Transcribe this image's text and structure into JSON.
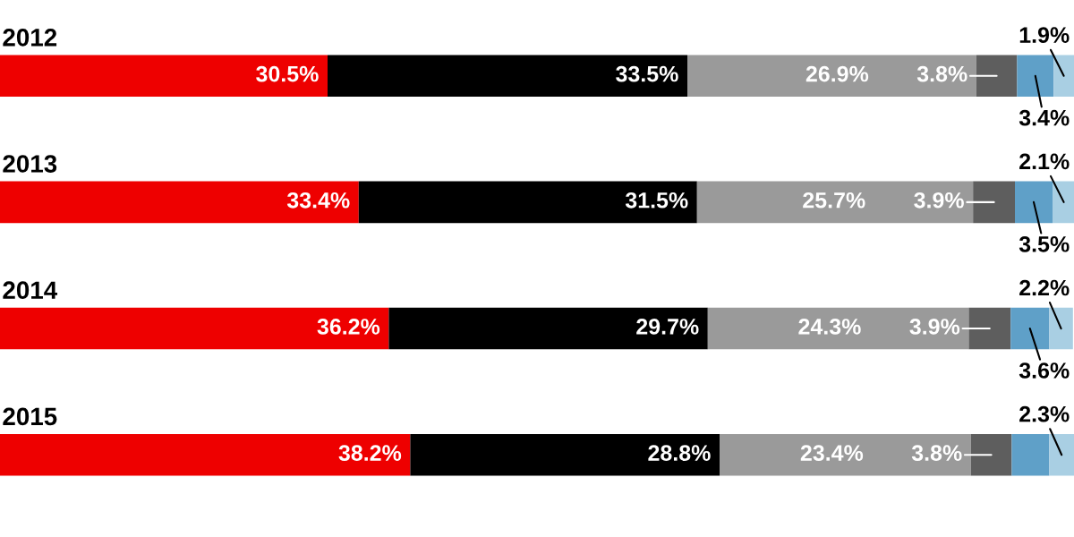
{
  "chart_data": {
    "type": "bar",
    "orientation": "horizontal",
    "stacked": true,
    "xlim": [
      0,
      100
    ],
    "categories": [
      "2012",
      "2013",
      "2014",
      "2015"
    ],
    "series": [
      {
        "color": "#ee0000",
        "values": [
          30.5,
          33.4,
          36.2,
          38.2
        ],
        "value_labels": [
          "30.5%",
          "33.4%",
          "36.2%",
          "38.2%"
        ]
      },
      {
        "color": "#000000",
        "values": [
          33.5,
          31.5,
          29.7,
          28.8
        ],
        "value_labels": [
          "33.5%",
          "31.5%",
          "29.7%",
          "28.8%"
        ]
      },
      {
        "color": "#9a9a9a",
        "values": [
          26.9,
          25.7,
          24.3,
          23.4
        ],
        "value_labels": [
          "26.9%",
          "25.7%",
          "24.3%",
          "23.4%"
        ]
      },
      {
        "color": "#5e5e5e",
        "values": [
          3.8,
          3.9,
          3.9,
          3.8
        ],
        "value_labels": [
          "3.8%",
          "3.9%",
          "3.9%",
          "3.8%"
        ]
      },
      {
        "color": "#5fa0c8",
        "values": [
          3.4,
          3.5,
          3.6,
          3.5
        ],
        "value_labels": [
          "3.4%",
          "3.5%",
          "3.6%",
          null
        ]
      },
      {
        "color": "#a9cfe3",
        "values": [
          1.9,
          2.1,
          2.2,
          2.3
        ],
        "value_labels": [
          "1.9%",
          "2.1%",
          "2.2%",
          "2.3%"
        ]
      }
    ]
  }
}
